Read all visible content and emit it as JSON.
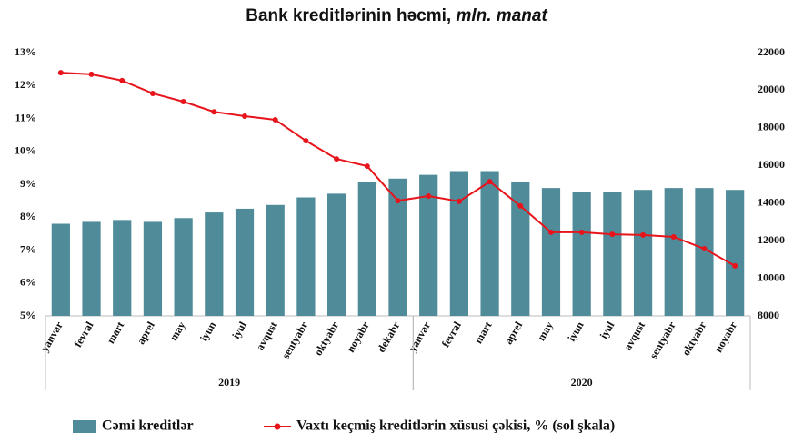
{
  "chart_data": {
    "type": "bar_line",
    "title": {
      "main": "Bank kreditlərinin həcmi,",
      "unit": "mln. manat"
    },
    "groups": [
      {
        "name": "2019",
        "categories": [
          "yanvar",
          "fevral",
          "mart",
          "aprel",
          "may",
          "iyun",
          "iyul",
          "avqust",
          "sentyabr",
          "oktyabr",
          "noyabr",
          "dekabr"
        ]
      },
      {
        "name": "2020",
        "categories": [
          "yanvar",
          "fevral",
          "mart",
          "aprel",
          "may",
          "iyun",
          "iyul",
          "avqust",
          "sentyabr",
          "oktyabr",
          "noyabr"
        ]
      }
    ],
    "series": [
      {
        "name": "Cəmi kreditlər",
        "type": "bar",
        "axis": "y2",
        "color": "#4f8b99",
        "values": [
          12900,
          13000,
          13100,
          13000,
          13200,
          13500,
          13700,
          13900,
          14300,
          14500,
          15100,
          15300,
          15500,
          15700,
          15700,
          15100,
          14800,
          14600,
          14600,
          14700,
          14800,
          14800,
          14700
        ]
      },
      {
        "name": "Vaxtı keçmiş kreditlərin xüsusi çəkisi, % (sol şkala)",
        "type": "line",
        "axis": "y",
        "color": "#e8141c",
        "values": [
          12.39,
          12.34,
          12.15,
          11.76,
          11.51,
          11.2,
          11.07,
          10.96,
          10.32,
          9.77,
          9.55,
          8.5,
          8.64,
          8.48,
          9.08,
          8.34,
          7.54,
          7.54,
          7.48,
          7.46,
          7.4,
          7.04,
          6.52
        ]
      }
    ],
    "ylim": [
      5,
      13
    ],
    "yticks": [
      {
        "value": 5,
        "label": "5%"
      },
      {
        "value": 6,
        "label": "6%"
      },
      {
        "value": 7,
        "label": "7%"
      },
      {
        "value": 8,
        "label": "8%"
      },
      {
        "value": 9,
        "label": "9%"
      },
      {
        "value": 10,
        "label": "10%"
      },
      {
        "value": 11,
        "label": "11%"
      },
      {
        "value": 12,
        "label": "12%"
      },
      {
        "value": 13,
        "label": "13%"
      }
    ],
    "y2lim": [
      8000,
      22000
    ],
    "y2ticks": [
      8000,
      10000,
      12000,
      14000,
      16000,
      18000,
      20000,
      22000
    ],
    "legend": "bottom"
  }
}
